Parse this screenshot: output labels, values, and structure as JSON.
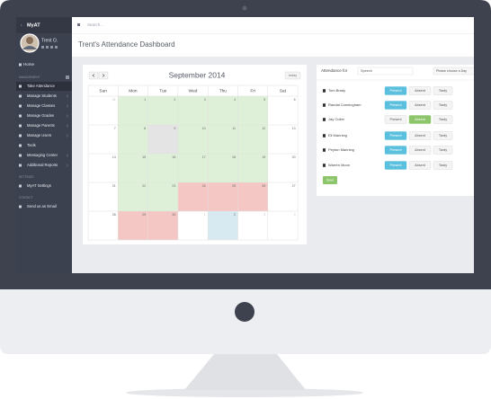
{
  "sidebar": {
    "brand": "MyAT",
    "user": "Trent O.",
    "home": "Home",
    "sections": [
      {
        "title": "MANAGEMENT",
        "items": [
          {
            "label": "Take Attendance",
            "active": true
          },
          {
            "label": "Manage Students"
          },
          {
            "label": "Manage Classes"
          },
          {
            "label": "Manage Grades"
          },
          {
            "label": "Manage Parents"
          },
          {
            "label": "Manage Users"
          },
          {
            "label": "Tools"
          },
          {
            "label": "Messaging Center"
          },
          {
            "label": "Additional Reports"
          }
        ]
      },
      {
        "title": "SETTINGS",
        "items": [
          {
            "label": "MyAT Settings"
          }
        ]
      },
      {
        "title": "CONTACT",
        "items": [
          {
            "label": "Send us an Email"
          }
        ]
      }
    ]
  },
  "search_placeholder": "Search...",
  "page_title": "Trent's Attendance Dashboard",
  "calendar": {
    "title": "September 2014",
    "today_button": "today",
    "weekdays": [
      "Sun",
      "Mon",
      "Tue",
      "Wed",
      "Thu",
      "Fri",
      "Sat"
    ],
    "weeks": [
      [
        {
          "day": 31,
          "state": "other"
        },
        {
          "day": 1,
          "state": "present"
        },
        {
          "day": 2,
          "state": "present"
        },
        {
          "day": 3,
          "state": "present"
        },
        {
          "day": 4,
          "state": "present"
        },
        {
          "day": 5,
          "state": "present"
        },
        {
          "day": 6,
          "state": "none"
        }
      ],
      [
        {
          "day": 7,
          "state": "none"
        },
        {
          "day": 8,
          "state": "present"
        },
        {
          "day": 9,
          "state": "off"
        },
        {
          "day": 10,
          "state": "present"
        },
        {
          "day": 11,
          "state": "present"
        },
        {
          "day": 12,
          "state": "present"
        },
        {
          "day": 13,
          "state": "none"
        }
      ],
      [
        {
          "day": 14,
          "state": "none"
        },
        {
          "day": 15,
          "state": "present"
        },
        {
          "day": 16,
          "state": "present"
        },
        {
          "day": 17,
          "state": "present"
        },
        {
          "day": 18,
          "state": "present"
        },
        {
          "day": 19,
          "state": "present"
        },
        {
          "day": 20,
          "state": "none"
        }
      ],
      [
        {
          "day": 21,
          "state": "none"
        },
        {
          "day": 22,
          "state": "present"
        },
        {
          "day": 23,
          "state": "present"
        },
        {
          "day": 24,
          "state": "absent"
        },
        {
          "day": 25,
          "state": "absent"
        },
        {
          "day": 26,
          "state": "absent"
        },
        {
          "day": 27,
          "state": "none"
        }
      ],
      [
        {
          "day": 28,
          "state": "none"
        },
        {
          "day": 29,
          "state": "absent"
        },
        {
          "day": 30,
          "state": "absent"
        },
        {
          "day": 1,
          "state": "other"
        },
        {
          "day": 2,
          "state": "today"
        },
        {
          "day": 3,
          "state": "other"
        },
        {
          "day": 4,
          "state": "other"
        }
      ]
    ]
  },
  "attendance": {
    "label": "Attendance for",
    "class_input": "Speech",
    "day_select": "Please choose a Day",
    "options": [
      "Present",
      "Absent",
      "Tardy"
    ],
    "students": [
      {
        "name": "Tom Brady",
        "selected": 0
      },
      {
        "name": "Randal Cunningham",
        "selected": 0
      },
      {
        "name": "Jay Cutler",
        "selected": 1
      },
      {
        "name": "Eli Manning",
        "selected": 0
      },
      {
        "name": "Peyton Manning",
        "selected": 0
      },
      {
        "name": "Warren Moon",
        "selected": 0
      }
    ],
    "save": "Save"
  }
}
